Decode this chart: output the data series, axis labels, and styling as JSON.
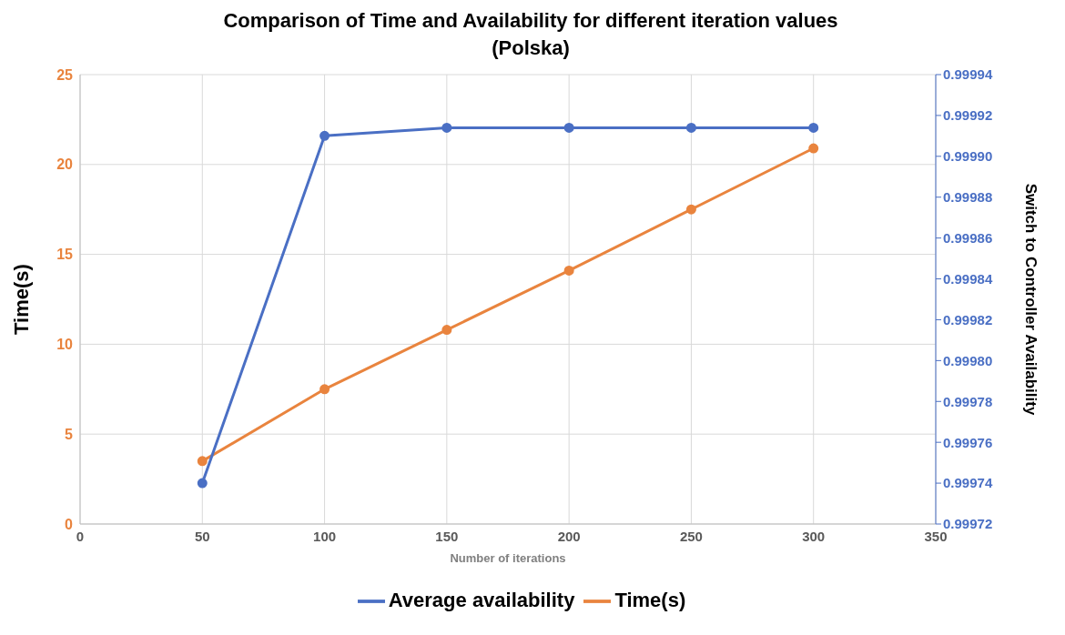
{
  "chart_data": {
    "type": "line",
    "title": "Comparison of Time and Availability for different iteration values (Polska)",
    "xlabel": "Number of iterations",
    "ylabel": "Time(s)",
    "y2label": "Switch to Controller Availability",
    "x": [
      50,
      100,
      150,
      200,
      250,
      300
    ],
    "series": [
      {
        "name": "Time(s)",
        "color": "#e9843e",
        "values": [
          3.5,
          7.5,
          10.8,
          14.1,
          17.5,
          20.9
        ]
      },
      {
        "name": "Average availability",
        "color": "#4a6fc4",
        "axis": "y2",
        "values": [
          0.99974,
          0.99991,
          0.999914,
          0.999914,
          0.999914,
          0.999914
        ]
      }
    ],
    "xlim": [
      0,
      350
    ],
    "xticks": [
      0,
      50,
      100,
      150,
      200,
      250,
      300,
      350
    ],
    "ylim": [
      0,
      25
    ],
    "yticks": [
      0,
      5,
      10,
      15,
      20,
      25
    ],
    "y2lim": [
      0.99972,
      0.99994
    ],
    "y2ticks": [
      {
        "value": 0.99972,
        "label": "0.99972"
      },
      {
        "value": 0.99974,
        "label": "0.99974"
      },
      {
        "value": 0.99976,
        "label": "0.99976"
      },
      {
        "value": 0.99978,
        "label": "0.99978"
      },
      {
        "value": 0.9998,
        "label": "0.99980"
      },
      {
        "value": 0.99982,
        "label": "0.99982"
      },
      {
        "value": 0.99984,
        "label": "0.99984"
      },
      {
        "value": 0.99986,
        "label": "0.99986"
      },
      {
        "value": 0.99988,
        "label": "0.99988"
      },
      {
        "value": 0.9999,
        "label": "0.99990"
      },
      {
        "value": 0.99992,
        "label": "0.99992"
      },
      {
        "value": 0.99994,
        "label": "0.99994"
      }
    ],
    "grid": true,
    "legend": "bottom",
    "marker": "circle",
    "line_style": "solid"
  }
}
